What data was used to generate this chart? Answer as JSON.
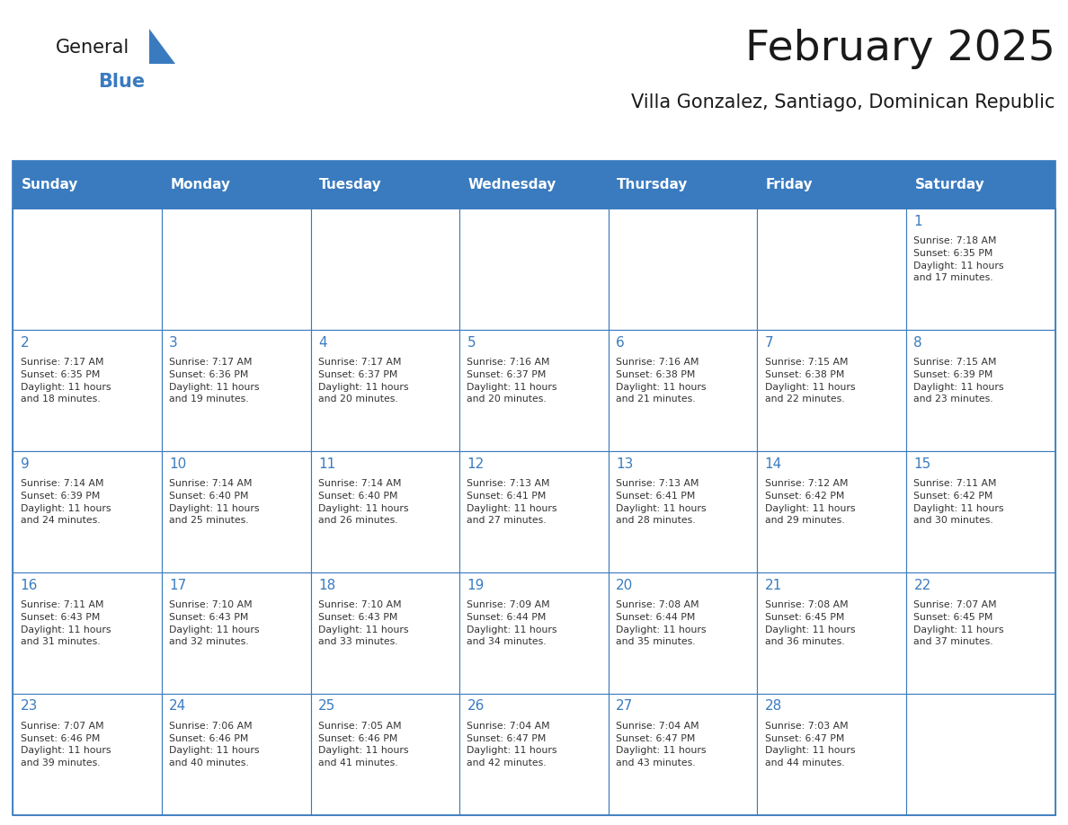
{
  "title": "February 2025",
  "subtitle": "Villa Gonzalez, Santiago, Dominican Republic",
  "header_bg_color": "#3a7bbf",
  "header_text_color": "#ffffff",
  "border_color": "#3a7bbf",
  "title_color": "#1a1a1a",
  "subtitle_color": "#1a1a1a",
  "day_num_color": "#3a7bbf",
  "cell_text_color": "#333333",
  "logo_general_color": "#1a1a1a",
  "logo_blue_color": "#3a7bbf",
  "day_headers": [
    "Sunday",
    "Monday",
    "Tuesday",
    "Wednesday",
    "Thursday",
    "Friday",
    "Saturday"
  ],
  "weeks": [
    [
      {
        "day": null,
        "text": ""
      },
      {
        "day": null,
        "text": ""
      },
      {
        "day": null,
        "text": ""
      },
      {
        "day": null,
        "text": ""
      },
      {
        "day": null,
        "text": ""
      },
      {
        "day": null,
        "text": ""
      },
      {
        "day": 1,
        "text": "Sunrise: 7:18 AM\nSunset: 6:35 PM\nDaylight: 11 hours\nand 17 minutes."
      }
    ],
    [
      {
        "day": 2,
        "text": "Sunrise: 7:17 AM\nSunset: 6:35 PM\nDaylight: 11 hours\nand 18 minutes."
      },
      {
        "day": 3,
        "text": "Sunrise: 7:17 AM\nSunset: 6:36 PM\nDaylight: 11 hours\nand 19 minutes."
      },
      {
        "day": 4,
        "text": "Sunrise: 7:17 AM\nSunset: 6:37 PM\nDaylight: 11 hours\nand 20 minutes."
      },
      {
        "day": 5,
        "text": "Sunrise: 7:16 AM\nSunset: 6:37 PM\nDaylight: 11 hours\nand 20 minutes."
      },
      {
        "day": 6,
        "text": "Sunrise: 7:16 AM\nSunset: 6:38 PM\nDaylight: 11 hours\nand 21 minutes."
      },
      {
        "day": 7,
        "text": "Sunrise: 7:15 AM\nSunset: 6:38 PM\nDaylight: 11 hours\nand 22 minutes."
      },
      {
        "day": 8,
        "text": "Sunrise: 7:15 AM\nSunset: 6:39 PM\nDaylight: 11 hours\nand 23 minutes."
      }
    ],
    [
      {
        "day": 9,
        "text": "Sunrise: 7:14 AM\nSunset: 6:39 PM\nDaylight: 11 hours\nand 24 minutes."
      },
      {
        "day": 10,
        "text": "Sunrise: 7:14 AM\nSunset: 6:40 PM\nDaylight: 11 hours\nand 25 minutes."
      },
      {
        "day": 11,
        "text": "Sunrise: 7:14 AM\nSunset: 6:40 PM\nDaylight: 11 hours\nand 26 minutes."
      },
      {
        "day": 12,
        "text": "Sunrise: 7:13 AM\nSunset: 6:41 PM\nDaylight: 11 hours\nand 27 minutes."
      },
      {
        "day": 13,
        "text": "Sunrise: 7:13 AM\nSunset: 6:41 PM\nDaylight: 11 hours\nand 28 minutes."
      },
      {
        "day": 14,
        "text": "Sunrise: 7:12 AM\nSunset: 6:42 PM\nDaylight: 11 hours\nand 29 minutes."
      },
      {
        "day": 15,
        "text": "Sunrise: 7:11 AM\nSunset: 6:42 PM\nDaylight: 11 hours\nand 30 minutes."
      }
    ],
    [
      {
        "day": 16,
        "text": "Sunrise: 7:11 AM\nSunset: 6:43 PM\nDaylight: 11 hours\nand 31 minutes."
      },
      {
        "day": 17,
        "text": "Sunrise: 7:10 AM\nSunset: 6:43 PM\nDaylight: 11 hours\nand 32 minutes."
      },
      {
        "day": 18,
        "text": "Sunrise: 7:10 AM\nSunset: 6:43 PM\nDaylight: 11 hours\nand 33 minutes."
      },
      {
        "day": 19,
        "text": "Sunrise: 7:09 AM\nSunset: 6:44 PM\nDaylight: 11 hours\nand 34 minutes."
      },
      {
        "day": 20,
        "text": "Sunrise: 7:08 AM\nSunset: 6:44 PM\nDaylight: 11 hours\nand 35 minutes."
      },
      {
        "day": 21,
        "text": "Sunrise: 7:08 AM\nSunset: 6:45 PM\nDaylight: 11 hours\nand 36 minutes."
      },
      {
        "day": 22,
        "text": "Sunrise: 7:07 AM\nSunset: 6:45 PM\nDaylight: 11 hours\nand 37 minutes."
      }
    ],
    [
      {
        "day": 23,
        "text": "Sunrise: 7:07 AM\nSunset: 6:46 PM\nDaylight: 11 hours\nand 39 minutes."
      },
      {
        "day": 24,
        "text": "Sunrise: 7:06 AM\nSunset: 6:46 PM\nDaylight: 11 hours\nand 40 minutes."
      },
      {
        "day": 25,
        "text": "Sunrise: 7:05 AM\nSunset: 6:46 PM\nDaylight: 11 hours\nand 41 minutes."
      },
      {
        "day": 26,
        "text": "Sunrise: 7:04 AM\nSunset: 6:47 PM\nDaylight: 11 hours\nand 42 minutes."
      },
      {
        "day": 27,
        "text": "Sunrise: 7:04 AM\nSunset: 6:47 PM\nDaylight: 11 hours\nand 43 minutes."
      },
      {
        "day": 28,
        "text": "Sunrise: 7:03 AM\nSunset: 6:47 PM\nDaylight: 11 hours\nand 44 minutes."
      },
      {
        "day": null,
        "text": ""
      }
    ]
  ]
}
